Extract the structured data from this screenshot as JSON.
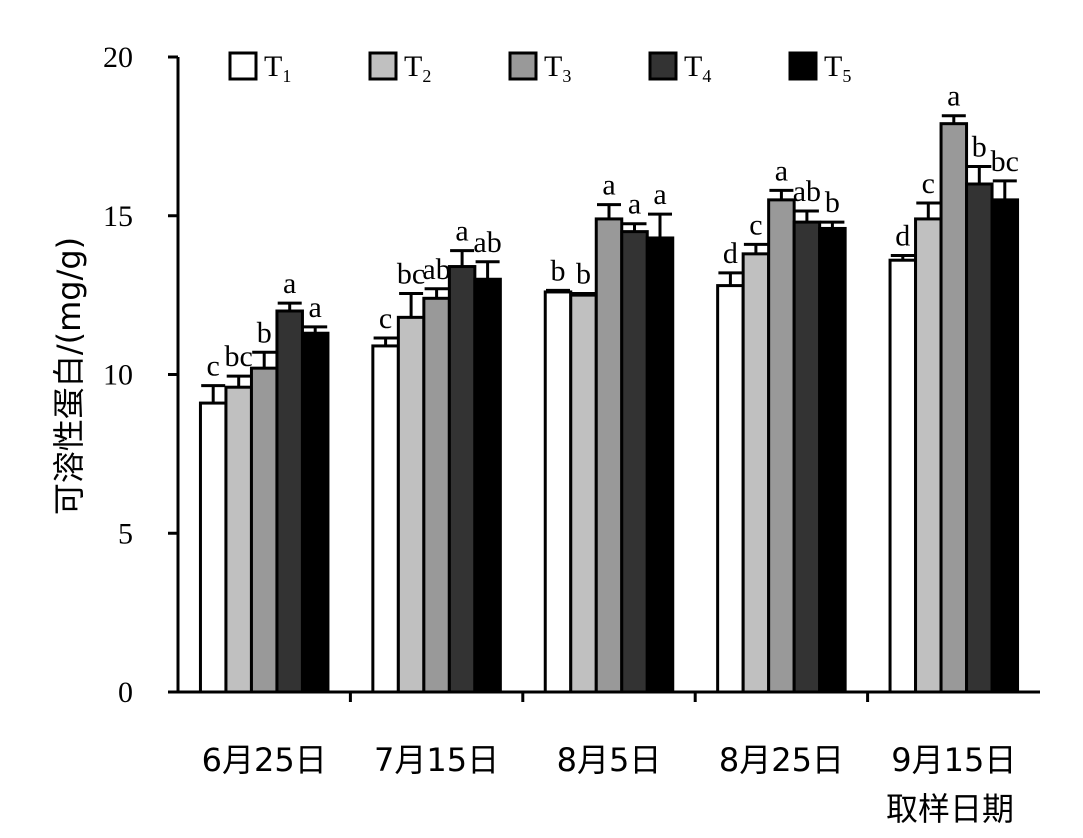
{
  "chart_data": {
    "type": "bar",
    "title": "",
    "ylabel": "可溶性蛋白/(mg/g)",
    "xlabel": "取样日期",
    "ylim": [
      0,
      20
    ],
    "yticks": [
      "0",
      "5",
      "10",
      "15",
      "20"
    ],
    "categories": [
      "6月25日",
      "7月15日",
      "8月5日",
      "8月25日",
      "9月15日"
    ],
    "legend_position": "top",
    "series": [
      {
        "name": "T",
        "sub": "1",
        "color": "#ffffff",
        "values": [
          9.1,
          10.9,
          12.6,
          12.8,
          13.6
        ],
        "errors": [
          0.55,
          0.25,
          0.05,
          0.4,
          0.15
        ],
        "labels": [
          "c",
          "c",
          "b",
          "d",
          "d"
        ]
      },
      {
        "name": "T",
        "sub": "2",
        "color": "#c0c0c0",
        "values": [
          9.6,
          11.8,
          12.5,
          13.8,
          14.9
        ],
        "errors": [
          0.35,
          0.75,
          0.05,
          0.3,
          0.5
        ],
        "labels": [
          "bc",
          "bc",
          "b",
          "c",
          "c"
        ]
      },
      {
        "name": "T",
        "sub": "3",
        "color": "#999999",
        "values": [
          10.2,
          12.4,
          14.9,
          15.5,
          17.9
        ],
        "errors": [
          0.5,
          0.3,
          0.45,
          0.3,
          0.25
        ],
        "labels": [
          "b",
          "ab",
          "a",
          "a",
          "a"
        ]
      },
      {
        "name": "T",
        "sub": "4",
        "color": "#333333",
        "values": [
          12.0,
          13.4,
          14.5,
          14.8,
          16.0
        ],
        "errors": [
          0.25,
          0.5,
          0.25,
          0.35,
          0.55
        ],
        "labels": [
          "a",
          "a",
          "a",
          "ab",
          "b"
        ]
      },
      {
        "name": "T",
        "sub": "5",
        "color": "#000000",
        "values": [
          11.3,
          13.0,
          14.3,
          14.6,
          15.5
        ],
        "errors": [
          0.2,
          0.55,
          0.75,
          0.2,
          0.6
        ],
        "labels": [
          "a",
          "ab",
          "a",
          "b",
          "bc"
        ]
      }
    ]
  }
}
